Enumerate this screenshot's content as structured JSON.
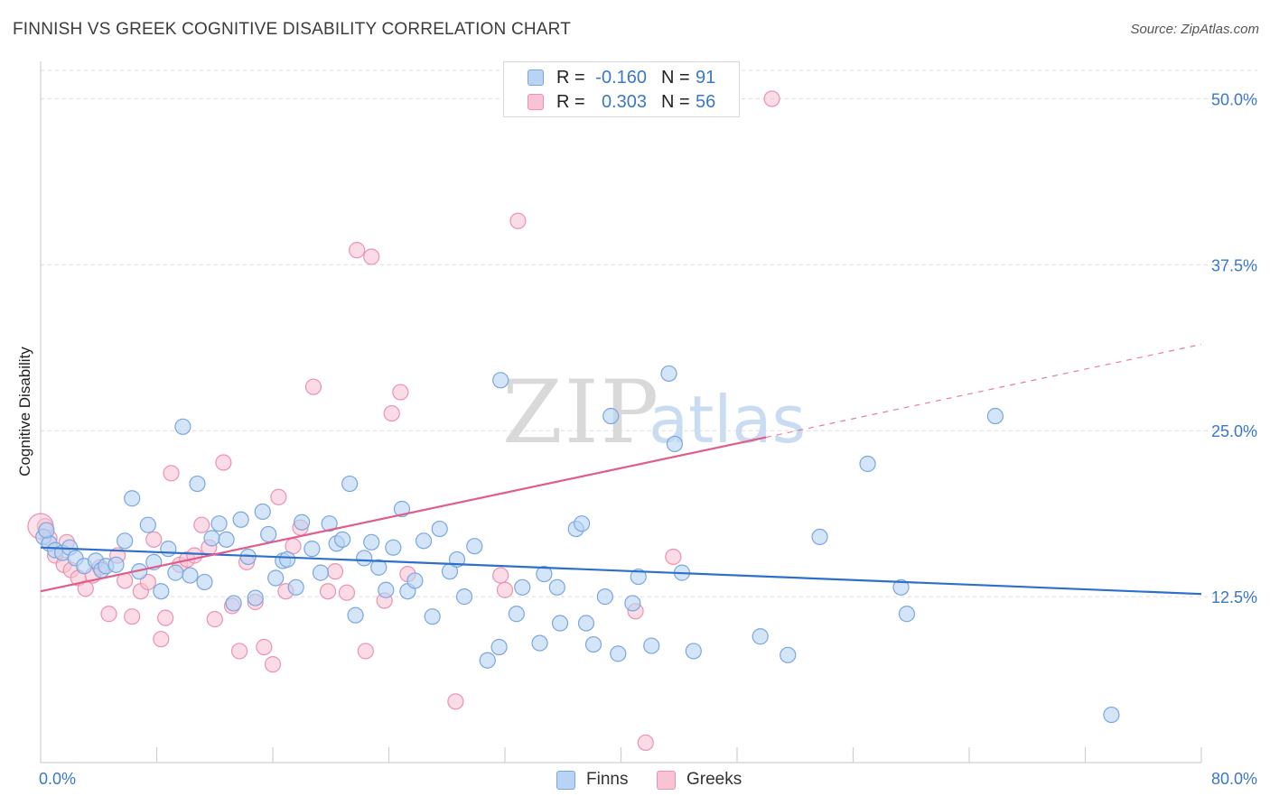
{
  "header": {
    "title": "FINNISH VS GREEK COGNITIVE DISABILITY CORRELATION CHART",
    "source": "Source: ZipAtlas.com"
  },
  "watermark": {
    "zip": "ZIP",
    "atlas": "atlas"
  },
  "legend_top": [
    {
      "r_label": "R =",
      "r_value": "-0.160",
      "n_label": "N =",
      "n_value": "91"
    },
    {
      "r_label": "R =",
      "r_value": "0.303",
      "n_label": "N =",
      "n_value": "56"
    }
  ],
  "colors": {
    "finns_fill": "#b8d3f4",
    "finns_stroke": "#7aa6e0",
    "finns_line": "#2e6fcb",
    "greeks_fill": "#f8c3d3",
    "greeks_stroke": "#eb93ae",
    "greeks_line": "#e05d8a",
    "tick_label": "#3a78c9",
    "grid": "#dcdcdc"
  },
  "chart_data": {
    "type": "scatter",
    "title": "FINNISH VS GREEK COGNITIVE DISABILITY CORRELATION CHART",
    "xlabel": "",
    "ylabel": "Cognitive Disability",
    "xlim": [
      0,
      80
    ],
    "ylim": [
      0,
      52
    ],
    "x_tick_labels": [
      "0.0%",
      "80.0%"
    ],
    "y_ticks": [
      12.5,
      25.0,
      37.5,
      50.0
    ],
    "y_tick_labels": [
      "12.5%",
      "25.0%",
      "37.5%",
      "50.0%"
    ],
    "grid": "horizontal dashed",
    "legend_placement": "bottom-center",
    "series": [
      {
        "name": "Finns",
        "r": -0.16,
        "n": 91,
        "trend": {
          "x": [
            0,
            80
          ],
          "y": [
            16.2,
            12.7
          ]
        },
        "points": [
          [
            0.2,
            17.0
          ],
          [
            0.6,
            16.5
          ],
          [
            1.0,
            16.0
          ],
          [
            1.5,
            15.8
          ],
          [
            2.0,
            16.2
          ],
          [
            2.4,
            15.4
          ],
          [
            3.0,
            14.8
          ],
          [
            3.8,
            15.2
          ],
          [
            4.2,
            14.5
          ],
          [
            4.5,
            14.8
          ],
          [
            5.2,
            14.9
          ],
          [
            5.8,
            16.7
          ],
          [
            6.3,
            19.9
          ],
          [
            6.8,
            14.4
          ],
          [
            7.4,
            17.9
          ],
          [
            7.8,
            15.1
          ],
          [
            8.3,
            12.9
          ],
          [
            8.8,
            16.1
          ],
          [
            9.3,
            14.3
          ],
          [
            9.8,
            25.3
          ],
          [
            10.3,
            14.1
          ],
          [
            10.8,
            21.0
          ],
          [
            11.3,
            13.6
          ],
          [
            11.8,
            16.9
          ],
          [
            12.3,
            18.0
          ],
          [
            12.8,
            16.8
          ],
          [
            13.3,
            12.0
          ],
          [
            13.8,
            18.3
          ],
          [
            14.3,
            15.5
          ],
          [
            14.8,
            12.4
          ],
          [
            15.3,
            18.9
          ],
          [
            15.7,
            17.2
          ],
          [
            16.2,
            13.9
          ],
          [
            16.7,
            15.2
          ],
          [
            17.0,
            15.3
          ],
          [
            17.6,
            13.2
          ],
          [
            18.0,
            18.1
          ],
          [
            18.7,
            16.1
          ],
          [
            19.3,
            14.3
          ],
          [
            19.9,
            18.0
          ],
          [
            20.4,
            16.5
          ],
          [
            20.8,
            16.8
          ],
          [
            21.3,
            21.0
          ],
          [
            21.7,
            11.1
          ],
          [
            22.3,
            15.4
          ],
          [
            22.8,
            16.6
          ],
          [
            23.3,
            14.7
          ],
          [
            23.8,
            13.0
          ],
          [
            24.3,
            16.2
          ],
          [
            24.9,
            19.1
          ],
          [
            25.3,
            12.9
          ],
          [
            25.8,
            13.7
          ],
          [
            26.4,
            16.7
          ],
          [
            27.0,
            11.0
          ],
          [
            27.5,
            17.6
          ],
          [
            28.2,
            14.4
          ],
          [
            28.7,
            15.3
          ],
          [
            29.2,
            12.5
          ],
          [
            29.9,
            16.3
          ],
          [
            30.8,
            7.7
          ],
          [
            31.6,
            8.7
          ],
          [
            31.7,
            28.8
          ],
          [
            32.8,
            11.2
          ],
          [
            33.2,
            13.2
          ],
          [
            34.4,
            9.0
          ],
          [
            34.7,
            14.2
          ],
          [
            35.6,
            13.2
          ],
          [
            35.8,
            10.5
          ],
          [
            36.9,
            17.6
          ],
          [
            37.3,
            18.0
          ],
          [
            37.6,
            10.5
          ],
          [
            38.1,
            8.9
          ],
          [
            38.9,
            12.5
          ],
          [
            39.3,
            26.1
          ],
          [
            39.8,
            8.2
          ],
          [
            40.8,
            12.0
          ],
          [
            41.2,
            14.0
          ],
          [
            42.1,
            8.8
          ],
          [
            43.3,
            29.3
          ],
          [
            43.7,
            24.0
          ],
          [
            44.2,
            14.3
          ],
          [
            45.0,
            8.4
          ],
          [
            49.6,
            9.5
          ],
          [
            51.5,
            8.1
          ],
          [
            53.7,
            17.0
          ],
          [
            57.0,
            22.5
          ],
          [
            59.3,
            13.2
          ],
          [
            59.7,
            11.2
          ],
          [
            65.8,
            26.1
          ],
          [
            73.8,
            3.6
          ],
          [
            0.4,
            17.5
          ]
        ]
      },
      {
        "name": "Greeks",
        "r": 0.303,
        "n": 56,
        "trend": {
          "x": [
            0,
            50
          ],
          "y": [
            12.9,
            24.5
          ]
        },
        "trend_extension": {
          "x": [
            50,
            80
          ],
          "y": [
            24.5,
            31.5
          ]
        },
        "points": [
          [
            0.3,
            17.8
          ],
          [
            0.6,
            16.9
          ],
          [
            1.0,
            15.6
          ],
          [
            1.6,
            14.9
          ],
          [
            2.1,
            14.5
          ],
          [
            2.6,
            13.9
          ],
          [
            3.1,
            13.1
          ],
          [
            3.6,
            14.1
          ],
          [
            4.1,
            14.7
          ],
          [
            4.7,
            11.2
          ],
          [
            5.3,
            15.6
          ],
          [
            5.8,
            13.7
          ],
          [
            6.3,
            11.0
          ],
          [
            6.9,
            12.9
          ],
          [
            7.4,
            13.6
          ],
          [
            7.8,
            16.8
          ],
          [
            8.3,
            9.3
          ],
          [
            8.6,
            10.9
          ],
          [
            9.0,
            21.8
          ],
          [
            9.6,
            14.9
          ],
          [
            10.1,
            15.3
          ],
          [
            10.6,
            15.6
          ],
          [
            11.1,
            17.9
          ],
          [
            11.6,
            16.2
          ],
          [
            12.0,
            10.8
          ],
          [
            12.6,
            22.6
          ],
          [
            13.2,
            11.8
          ],
          [
            13.7,
            8.4
          ],
          [
            14.2,
            15.1
          ],
          [
            14.8,
            12.1
          ],
          [
            15.4,
            8.7
          ],
          [
            16.0,
            7.4
          ],
          [
            16.4,
            20.0
          ],
          [
            16.9,
            12.9
          ],
          [
            17.4,
            16.3
          ],
          [
            17.9,
            17.7
          ],
          [
            18.8,
            28.3
          ],
          [
            19.8,
            12.9
          ],
          [
            20.3,
            14.4
          ],
          [
            21.1,
            12.8
          ],
          [
            21.8,
            38.6
          ],
          [
            22.4,
            8.4
          ],
          [
            22.8,
            38.1
          ],
          [
            23.7,
            12.2
          ],
          [
            24.2,
            26.3
          ],
          [
            24.8,
            27.9
          ],
          [
            25.3,
            14.2
          ],
          [
            28.6,
            4.6
          ],
          [
            31.7,
            14.1
          ],
          [
            32.9,
            40.8
          ],
          [
            32.0,
            13.0
          ],
          [
            41.0,
            11.4
          ],
          [
            41.7,
            1.5
          ],
          [
            43.6,
            15.5
          ],
          [
            50.4,
            50.0
          ],
          [
            1.8,
            16.6
          ]
        ]
      }
    ]
  }
}
